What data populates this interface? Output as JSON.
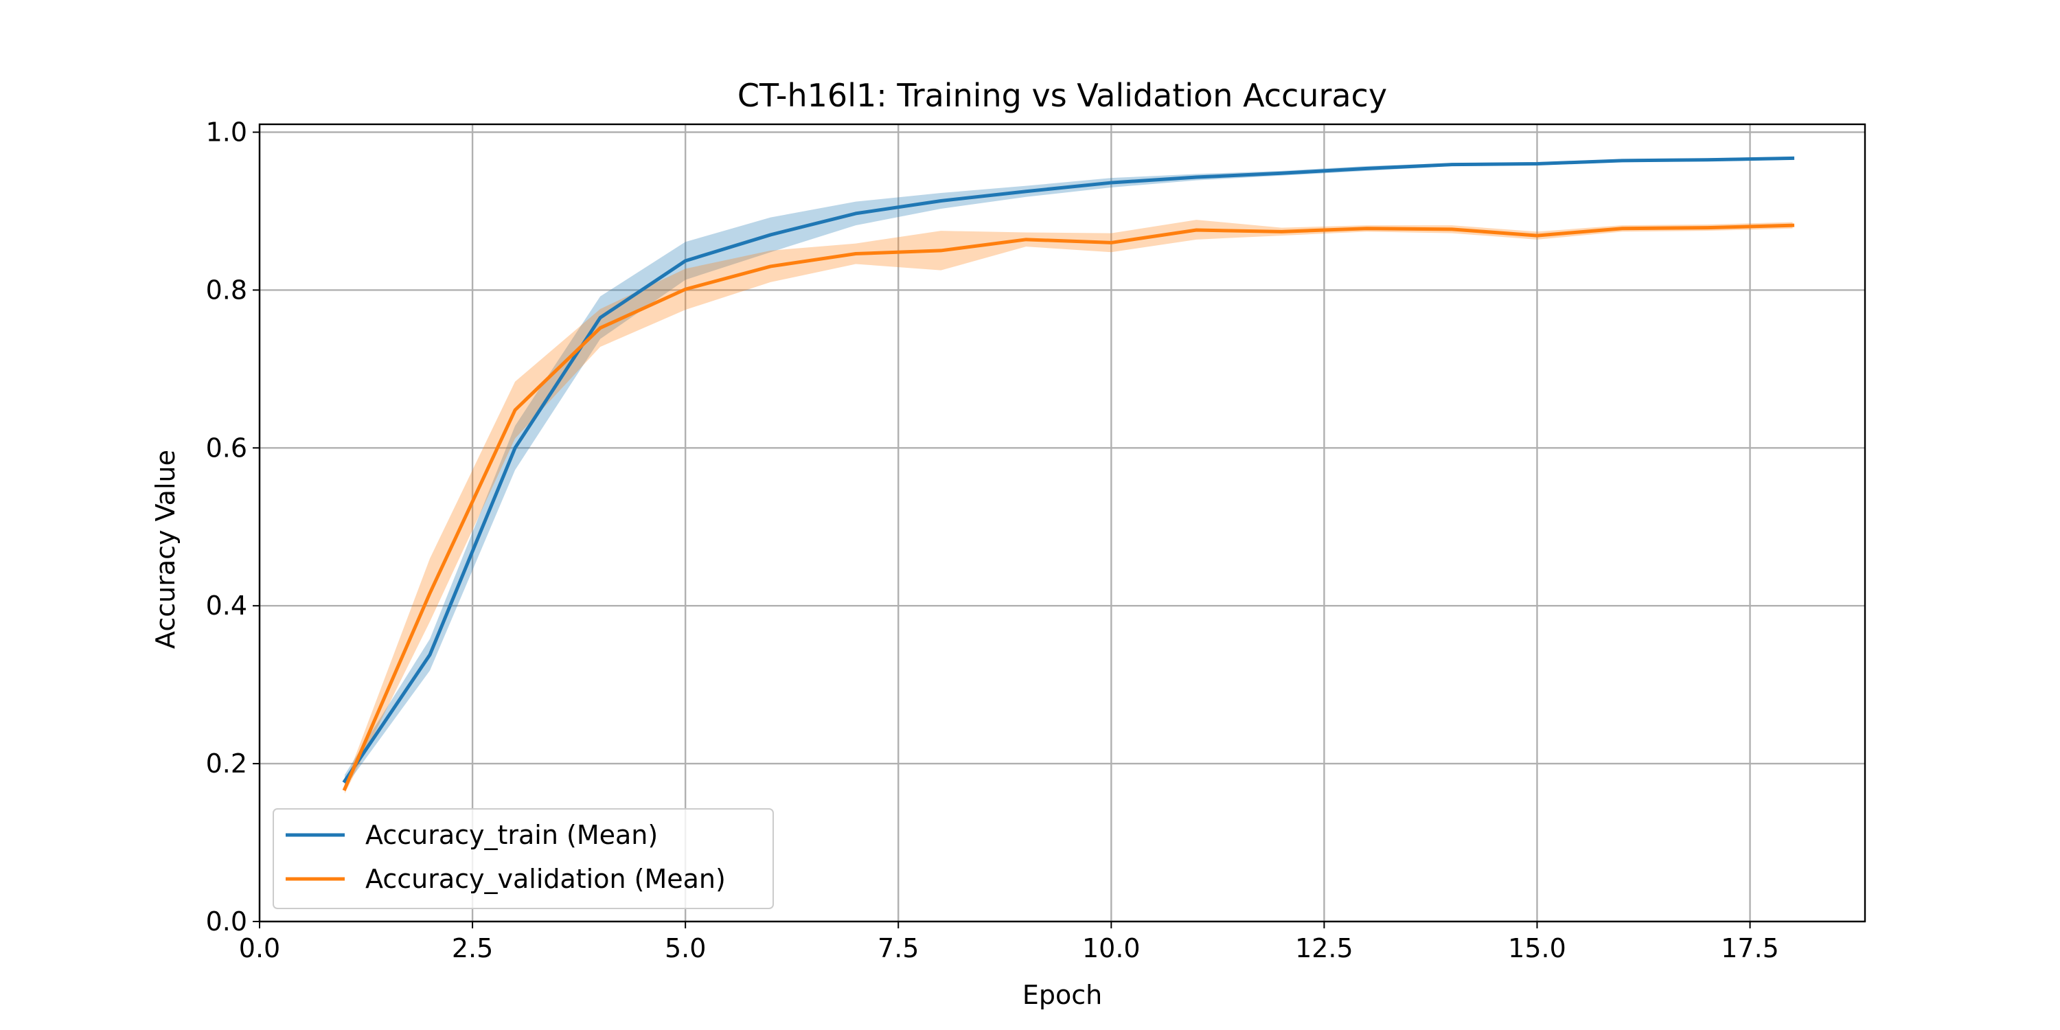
{
  "chart_data": {
    "type": "line",
    "title": "CT-h16l1: Training vs Validation Accuracy",
    "xlabel": "Epoch",
    "ylabel": "Accuracy Value",
    "xlim": [
      0,
      18.85
    ],
    "ylim": [
      0,
      1.01
    ],
    "xticks": [
      0,
      2.5,
      5,
      7.5,
      10,
      12.5,
      15,
      17.5
    ],
    "xtick_labels": [
      "0.0",
      "2.5",
      "5.0",
      "7.5",
      "10.0",
      "12.5",
      "15.0",
      "17.5"
    ],
    "yticks": [
      0,
      0.2,
      0.4,
      0.6,
      0.8,
      1.0
    ],
    "ytick_labels": [
      "0.0",
      "0.2",
      "0.4",
      "0.6",
      "0.8",
      "1.0"
    ],
    "grid": true,
    "legend_position": "bottom-left",
    "x": [
      1,
      2,
      3,
      4,
      5,
      6,
      7,
      8,
      9,
      10,
      11,
      12,
      13,
      14,
      15,
      16,
      17,
      18
    ],
    "series": [
      {
        "name": "Accuracy_train (Mean)",
        "color": "#1f77b4",
        "values": [
          0.178,
          0.338,
          0.6,
          0.765,
          0.837,
          0.87,
          0.897,
          0.913,
          0.925,
          0.936,
          0.943,
          0.948,
          0.954,
          0.959,
          0.96,
          0.964,
          0.965,
          0.967
        ],
        "lower": [
          0.17,
          0.318,
          0.572,
          0.738,
          0.813,
          0.848,
          0.882,
          0.903,
          0.918,
          0.93,
          0.939,
          0.945,
          0.951,
          0.957,
          0.958,
          0.962,
          0.963,
          0.965
        ],
        "upper": [
          0.186,
          0.358,
          0.628,
          0.792,
          0.861,
          0.892,
          0.912,
          0.923,
          0.932,
          0.942,
          0.947,
          0.951,
          0.957,
          0.961,
          0.962,
          0.966,
          0.967,
          0.969
        ]
      },
      {
        "name": "Accuracy_validation (Mean)",
        "color": "#ff7f0e",
        "values": [
          0.168,
          0.416,
          0.648,
          0.752,
          0.801,
          0.83,
          0.846,
          0.85,
          0.864,
          0.86,
          0.876,
          0.874,
          0.878,
          0.877,
          0.869,
          0.878,
          0.879,
          0.882
        ],
        "lower": [
          0.162,
          0.38,
          0.612,
          0.728,
          0.775,
          0.81,
          0.833,
          0.825,
          0.855,
          0.848,
          0.864,
          0.869,
          0.874,
          0.872,
          0.864,
          0.874,
          0.875,
          0.878
        ],
        "upper": [
          0.174,
          0.46,
          0.684,
          0.776,
          0.827,
          0.85,
          0.859,
          0.875,
          0.873,
          0.872,
          0.889,
          0.879,
          0.882,
          0.882,
          0.874,
          0.882,
          0.883,
          0.886
        ]
      }
    ]
  }
}
